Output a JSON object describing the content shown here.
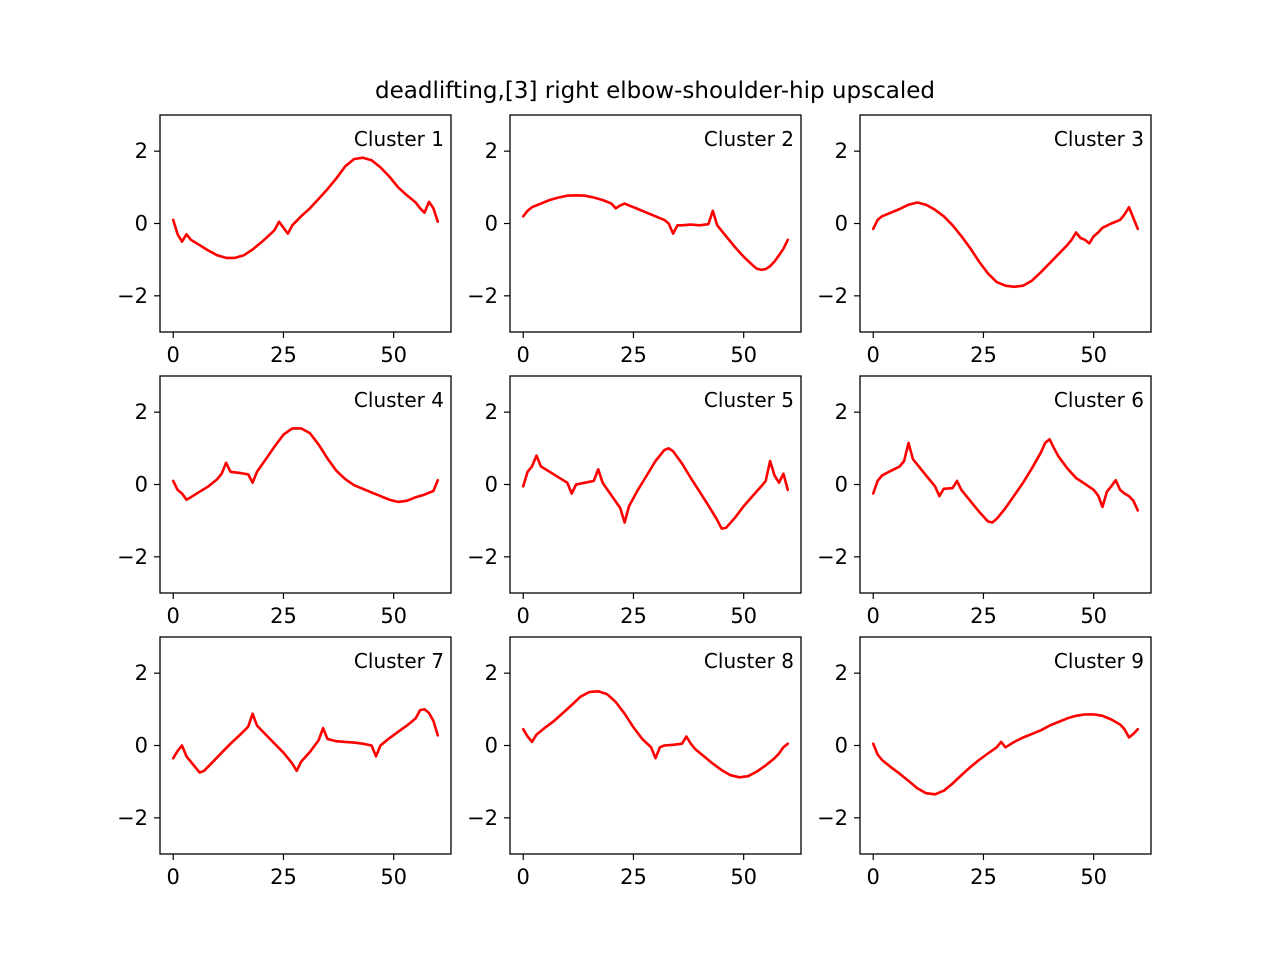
{
  "figure": {
    "title": "deadlifting,[3] right elbow-shoulder-hip upscaled"
  },
  "chart_data": [
    {
      "type": "line",
      "label": "Cluster 1",
      "xlim": [
        -3,
        63
      ],
      "ylim": [
        -3,
        3
      ],
      "xticks": [
        0,
        25,
        50
      ],
      "yticks": [
        -2,
        0,
        2
      ],
      "ytick_labels": [
        "−2",
        "0",
        "2"
      ],
      "color": "#ff0000",
      "x": [
        0,
        1,
        2,
        3,
        4,
        6,
        8,
        10,
        12,
        14,
        16,
        18,
        20,
        22,
        23,
        24,
        25,
        26,
        27,
        29,
        31,
        33,
        35,
        37,
        39,
        41,
        43,
        45,
        47,
        49,
        51,
        53,
        55,
        56,
        57,
        58,
        59,
        60
      ],
      "y": [
        0.1,
        -0.3,
        -0.5,
        -0.3,
        -0.45,
        -0.6,
        -0.75,
        -0.88,
        -0.95,
        -0.95,
        -0.88,
        -0.72,
        -0.52,
        -0.3,
        -0.18,
        0.05,
        -0.12,
        -0.28,
        -0.05,
        0.2,
        0.42,
        0.68,
        0.95,
        1.25,
        1.58,
        1.78,
        1.82,
        1.75,
        1.55,
        1.3,
        1.0,
        0.78,
        0.58,
        0.42,
        0.3,
        0.6,
        0.42,
        0.05
      ]
    },
    {
      "type": "line",
      "label": "Cluster 2",
      "xlim": [
        -3,
        63
      ],
      "ylim": [
        -3,
        3
      ],
      "xticks": [
        0,
        25,
        50
      ],
      "yticks": [
        -2,
        0,
        2
      ],
      "ytick_labels": [
        "−2",
        "0",
        "2"
      ],
      "color": "#ff0000",
      "x": [
        0,
        1,
        2,
        4,
        6,
        8,
        10,
        12,
        14,
        16,
        18,
        20,
        21,
        22,
        23,
        24,
        26,
        28,
        30,
        32,
        33,
        34,
        35,
        36,
        38,
        40,
        42,
        43,
        44,
        46,
        48,
        50,
        52,
        53,
        54,
        55,
        56,
        57,
        58,
        59,
        60
      ],
      "y": [
        0.2,
        0.35,
        0.45,
        0.55,
        0.65,
        0.72,
        0.77,
        0.78,
        0.77,
        0.72,
        0.65,
        0.55,
        0.42,
        0.5,
        0.55,
        0.5,
        0.4,
        0.3,
        0.2,
        0.1,
        0.0,
        -0.28,
        -0.05,
        -0.05,
        -0.03,
        -0.05,
        -0.02,
        0.35,
        -0.05,
        -0.35,
        -0.65,
        -0.92,
        -1.15,
        -1.25,
        -1.28,
        -1.26,
        -1.18,
        -1.05,
        -0.88,
        -0.7,
        -0.45
      ]
    },
    {
      "type": "line",
      "label": "Cluster 3",
      "xlim": [
        -3,
        63
      ],
      "ylim": [
        -3,
        3
      ],
      "xticks": [
        0,
        25,
        50
      ],
      "yticks": [
        -2,
        0,
        2
      ],
      "ytick_labels": [
        "−2",
        "0",
        "2"
      ],
      "color": "#ff0000",
      "x": [
        0,
        1,
        2,
        4,
        6,
        8,
        10,
        12,
        14,
        16,
        18,
        20,
        22,
        24,
        26,
        28,
        30,
        32,
        34,
        36,
        38,
        40,
        42,
        44,
        45,
        46,
        47,
        48,
        49,
        50,
        51,
        52,
        54,
        56,
        57,
        58,
        59,
        60
      ],
      "y": [
        -0.15,
        0.1,
        0.2,
        0.3,
        0.4,
        0.52,
        0.58,
        0.52,
        0.38,
        0.2,
        -0.05,
        -0.35,
        -0.68,
        -1.05,
        -1.38,
        -1.62,
        -1.72,
        -1.75,
        -1.72,
        -1.58,
        -1.35,
        -1.1,
        -0.85,
        -0.6,
        -0.45,
        -0.25,
        -0.4,
        -0.45,
        -0.55,
        -0.35,
        -0.25,
        -0.12,
        0.0,
        0.1,
        0.25,
        0.45,
        0.15,
        -0.15
      ]
    },
    {
      "type": "line",
      "label": "Cluster 4",
      "xlim": [
        -3,
        63
      ],
      "ylim": [
        -3,
        3
      ],
      "xticks": [
        0,
        25,
        50
      ],
      "yticks": [
        -2,
        0,
        2
      ],
      "ytick_labels": [
        "−2",
        "0",
        "2"
      ],
      "color": "#ff0000",
      "x": [
        0,
        1,
        2,
        3,
        4,
        6,
        8,
        10,
        11,
        12,
        13,
        15,
        17,
        18,
        19,
        21,
        23,
        25,
        27,
        29,
        31,
        33,
        35,
        37,
        39,
        41,
        43,
        45,
        47,
        49,
        51,
        53,
        55,
        57,
        59,
        60
      ],
      "y": [
        0.1,
        -0.15,
        -0.25,
        -0.42,
        -0.35,
        -0.2,
        -0.05,
        0.15,
        0.3,
        0.6,
        0.35,
        0.32,
        0.28,
        0.05,
        0.35,
        0.7,
        1.05,
        1.38,
        1.55,
        1.55,
        1.42,
        1.1,
        0.72,
        0.38,
        0.15,
        -0.02,
        -0.12,
        -0.22,
        -0.32,
        -0.42,
        -0.48,
        -0.45,
        -0.35,
        -0.28,
        -0.18,
        0.12
      ]
    },
    {
      "type": "line",
      "label": "Cluster 5",
      "xlim": [
        -3,
        63
      ],
      "ylim": [
        -3,
        3
      ],
      "xticks": [
        0,
        25,
        50
      ],
      "yticks": [
        -2,
        0,
        2
      ],
      "ytick_labels": [
        "−2",
        "0",
        "2"
      ],
      "color": "#ff0000",
      "x": [
        0,
        1,
        2,
        3,
        4,
        6,
        8,
        10,
        11,
        12,
        14,
        16,
        17,
        18,
        20,
        22,
        23,
        24,
        26,
        28,
        30,
        32,
        33,
        34,
        36,
        38,
        40,
        42,
        44,
        45,
        46,
        48,
        50,
        52,
        54,
        55,
        56,
        57,
        58,
        59,
        60
      ],
      "y": [
        -0.05,
        0.35,
        0.5,
        0.8,
        0.5,
        0.35,
        0.2,
        0.05,
        -0.25,
        0.0,
        0.05,
        0.1,
        0.42,
        0.05,
        -0.3,
        -0.65,
        -1.05,
        -0.6,
        -0.15,
        0.25,
        0.65,
        0.95,
        1.0,
        0.92,
        0.58,
        0.18,
        -0.2,
        -0.58,
        -0.98,
        -1.22,
        -1.2,
        -0.92,
        -0.6,
        -0.32,
        -0.05,
        0.1,
        0.65,
        0.25,
        0.05,
        0.3,
        -0.15
      ]
    },
    {
      "type": "line",
      "label": "Cluster 6",
      "xlim": [
        -3,
        63
      ],
      "ylim": [
        -3,
        3
      ],
      "xticks": [
        0,
        25,
        50
      ],
      "yticks": [
        -2,
        0,
        2
      ],
      "ytick_labels": [
        "−2",
        "0",
        "2"
      ],
      "color": "#ff0000",
      "x": [
        0,
        1,
        2,
        4,
        6,
        7,
        8,
        9,
        10,
        12,
        14,
        15,
        16,
        18,
        19,
        20,
        22,
        24,
        26,
        27,
        28,
        30,
        32,
        34,
        36,
        38,
        39,
        40,
        41,
        42,
        44,
        46,
        48,
        50,
        51,
        52,
        53,
        54,
        55,
        56,
        57,
        58,
        59,
        60
      ],
      "y": [
        -0.25,
        0.1,
        0.25,
        0.38,
        0.5,
        0.65,
        1.15,
        0.7,
        0.55,
        0.25,
        -0.05,
        -0.32,
        -0.12,
        -0.1,
        0.1,
        -0.15,
        -0.45,
        -0.75,
        -1.02,
        -1.05,
        -0.95,
        -0.65,
        -0.3,
        0.05,
        0.45,
        0.88,
        1.15,
        1.25,
        1.0,
        0.78,
        0.45,
        0.18,
        0.02,
        -0.15,
        -0.3,
        -0.62,
        -0.2,
        -0.05,
        0.12,
        -0.15,
        -0.25,
        -0.32,
        -0.45,
        -0.72
      ]
    },
    {
      "type": "line",
      "label": "Cluster 7",
      "xlim": [
        -3,
        63
      ],
      "ylim": [
        -3,
        3
      ],
      "xticks": [
        0,
        25,
        50
      ],
      "yticks": [
        -2,
        0,
        2
      ],
      "ytick_labels": [
        "−2",
        "0",
        "2"
      ],
      "color": "#ff0000",
      "x": [
        0,
        1,
        2,
        3,
        4,
        5,
        6,
        7,
        9,
        11,
        13,
        15,
        17,
        18,
        19,
        21,
        23,
        25,
        27,
        28,
        29,
        31,
        33,
        34,
        35,
        37,
        39,
        41,
        43,
        45,
        46,
        47,
        49,
        51,
        53,
        55,
        56,
        57,
        58,
        59,
        60
      ],
      "y": [
        -0.35,
        -0.15,
        0.0,
        -0.3,
        -0.45,
        -0.6,
        -0.75,
        -0.7,
        -0.45,
        -0.2,
        0.05,
        0.28,
        0.52,
        0.88,
        0.55,
        0.3,
        0.05,
        -0.2,
        -0.5,
        -0.7,
        -0.45,
        -0.18,
        0.15,
        0.48,
        0.18,
        0.12,
        0.1,
        0.08,
        0.05,
        0.0,
        -0.3,
        0.0,
        0.2,
        0.38,
        0.55,
        0.75,
        0.98,
        1.0,
        0.9,
        0.68,
        0.28
      ]
    },
    {
      "type": "line",
      "label": "Cluster 8",
      "xlim": [
        -3,
        63
      ],
      "ylim": [
        -3,
        3
      ],
      "xticks": [
        0,
        25,
        50
      ],
      "yticks": [
        -2,
        0,
        2
      ],
      "ytick_labels": [
        "−2",
        "0",
        "2"
      ],
      "color": "#ff0000",
      "x": [
        0,
        1,
        2,
        3,
        5,
        7,
        9,
        11,
        13,
        15,
        17,
        19,
        21,
        23,
        25,
        27,
        29,
        30,
        31,
        32,
        34,
        36,
        37,
        38,
        39,
        41,
        43,
        45,
        47,
        49,
        51,
        53,
        55,
        57,
        58,
        59,
        60
      ],
      "y": [
        0.45,
        0.25,
        0.1,
        0.3,
        0.5,
        0.68,
        0.9,
        1.12,
        1.35,
        1.48,
        1.5,
        1.42,
        1.2,
        0.88,
        0.5,
        0.18,
        -0.05,
        -0.35,
        -0.05,
        0.0,
        0.02,
        0.05,
        0.25,
        0.05,
        -0.1,
        -0.3,
        -0.5,
        -0.68,
        -0.82,
        -0.88,
        -0.85,
        -0.72,
        -0.55,
        -0.35,
        -0.22,
        -0.05,
        0.05
      ]
    },
    {
      "type": "line",
      "label": "Cluster 9",
      "xlim": [
        -3,
        63
      ],
      "ylim": [
        -3,
        3
      ],
      "xticks": [
        0,
        25,
        50
      ],
      "yticks": [
        -2,
        0,
        2
      ],
      "ytick_labels": [
        "−2",
        "0",
        "2"
      ],
      "color": "#ff0000",
      "x": [
        0,
        1,
        2,
        4,
        6,
        8,
        10,
        12,
        14,
        16,
        18,
        20,
        22,
        24,
        26,
        28,
        29,
        30,
        32,
        34,
        36,
        38,
        40,
        42,
        44,
        46,
        48,
        50,
        52,
        54,
        56,
        57,
        58,
        59,
        60
      ],
      "y": [
        0.05,
        -0.25,
        -0.4,
        -0.6,
        -0.78,
        -0.98,
        -1.18,
        -1.32,
        -1.35,
        -1.25,
        -1.05,
        -0.82,
        -0.6,
        -0.4,
        -0.22,
        -0.05,
        0.1,
        -0.05,
        0.1,
        0.22,
        0.32,
        0.42,
        0.55,
        0.65,
        0.75,
        0.82,
        0.86,
        0.86,
        0.82,
        0.72,
        0.58,
        0.45,
        0.22,
        0.32,
        0.45
      ]
    }
  ]
}
